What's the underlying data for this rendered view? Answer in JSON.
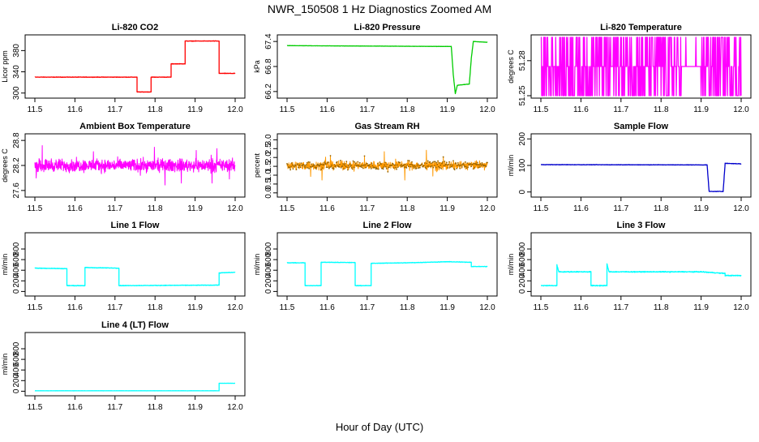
{
  "figure": {
    "title": "NWR_150508  1 Hz Diagnostics Zoomed AM",
    "xlabel": "Hour of Day (UTC)"
  },
  "chart_data": [
    {
      "type": "line",
      "title": "Li-820 CO2",
      "ylabel": "Licor ppm",
      "color": "#ff0000",
      "xlim": [
        11.5,
        12.0
      ],
      "ylim": [
        295,
        405
      ],
      "x_ticks": [
        "11.5",
        "11.6",
        "11.7",
        "11.8",
        "11.9",
        "12.0"
      ],
      "y_ticks": [
        "300",
        "340",
        "380"
      ],
      "y_tick_values": [
        300,
        340,
        380
      ],
      "noise": 0.6,
      "x": [
        11.5,
        11.755,
        11.755,
        11.79,
        11.79,
        11.84,
        11.84,
        11.875,
        11.875,
        11.96,
        11.96,
        12.0
      ],
      "y": [
        330,
        330,
        302,
        302,
        330,
        330,
        355,
        355,
        398,
        398,
        337,
        337
      ]
    },
    {
      "type": "line",
      "title": "Li-820 Pressure",
      "ylabel": "kPa",
      "color": "#00cc00",
      "xlim": [
        11.5,
        12.0
      ],
      "ylim": [
        66.1,
        67.5
      ],
      "x_ticks": [
        "11.5",
        "11.6",
        "11.7",
        "11.8",
        "11.9",
        "12.0"
      ],
      "y_ticks": [
        "66.2",
        "66.8",
        "67.4"
      ],
      "y_tick_values": [
        66.2,
        66.8,
        67.4
      ],
      "noise": 0.004,
      "x": [
        11.5,
        11.91,
        11.915,
        11.92,
        11.925,
        11.955,
        11.96,
        11.965,
        12.0
      ],
      "y": [
        67.3,
        67.28,
        66.6,
        66.15,
        66.35,
        66.38,
        67.0,
        67.4,
        67.38
      ]
    },
    {
      "type": "step-noise",
      "title": "Li-820 Temperature",
      "ylabel": "degrees C",
      "color": "#ff00ff",
      "xlim": [
        11.5,
        12.0
      ],
      "ylim": [
        51.25,
        51.3
      ],
      "x_ticks": [
        "11.5",
        "11.6",
        "11.7",
        "11.8",
        "11.9",
        "12.0"
      ],
      "y_ticks": [
        "51.25",
        "51.28"
      ],
      "y_tick_values": [
        51.25,
        51.28
      ],
      "levels": [
        51.25,
        51.275,
        51.3
      ],
      "gap": [
        11.85,
        11.9
      ]
    },
    {
      "type": "noise",
      "title": "Ambient Box Temperature",
      "ylabel": "degrees C",
      "color": "#ff00ff",
      "xlim": [
        11.5,
        12.0
      ],
      "ylim": [
        27.5,
        28.9
      ],
      "x_ticks": [
        "11.5",
        "11.6",
        "11.7",
        "11.8",
        "11.9",
        "12.0"
      ],
      "y_ticks": [
        "27.6",
        "28.2",
        "28.8"
      ],
      "y_tick_values": [
        27.6,
        28.2,
        28.8
      ],
      "center": 28.2,
      "spread": 0.22
    },
    {
      "type": "noise",
      "title": "Gas Stream RH",
      "ylabel": "percent",
      "color": "#ff9900",
      "xlim": [
        11.5,
        12.0
      ],
      "ylim": [
        -0.1,
        3.2
      ],
      "x_ticks": [
        "11.5",
        "11.6",
        "11.7",
        "11.8",
        "11.9",
        "12.0"
      ],
      "y_ticks": [
        "0.0",
        "0.5",
        "1.0",
        "1.5",
        "2.0",
        "2.5",
        "3.0"
      ],
      "y_tick_values": [
        0,
        0.5,
        1,
        1.5,
        2,
        2.5,
        3
      ],
      "center": 1.55,
      "spread": 0.35
    },
    {
      "type": "line",
      "title": "Sample Flow",
      "ylabel": "ml/min",
      "color": "#0000cc",
      "xlim": [
        11.5,
        12.0
      ],
      "ylim": [
        -10,
        210
      ],
      "x_ticks": [
        "11.5",
        "11.6",
        "11.7",
        "11.8",
        "11.9",
        "12.0"
      ],
      "y_ticks": [
        "0",
        "100",
        "200"
      ],
      "y_tick_values": [
        0,
        100,
        200
      ],
      "noise": 1.2,
      "x": [
        11.5,
        11.915,
        11.92,
        11.955,
        11.96,
        12.0
      ],
      "y": [
        103,
        102,
        2,
        2,
        108,
        106
      ]
    },
    {
      "type": "line",
      "title": "Line 1 Flow",
      "ylabel": "ml/min",
      "color": "#00ffff",
      "xlim": [
        11.5,
        12.0
      ],
      "ylim": [
        -40,
        1060
      ],
      "x_ticks": [
        "11.5",
        "11.6",
        "11.7",
        "11.8",
        "11.9",
        "12.0"
      ],
      "y_ticks": [
        "0",
        "200",
        "400",
        "600",
        "800"
      ],
      "y_tick_values": [
        0,
        200,
        400,
        600,
        800
      ],
      "noise": 8,
      "x": [
        11.5,
        11.58,
        11.58,
        11.625,
        11.625,
        11.71,
        11.71,
        11.96,
        11.96,
        12.0
      ],
      "y": [
        440,
        430,
        110,
        110,
        450,
        440,
        110,
        120,
        350,
        360
      ]
    },
    {
      "type": "line",
      "title": "Line 2 Flow",
      "ylabel": "ml/min",
      "color": "#00ffff",
      "xlim": [
        11.5,
        12.0
      ],
      "ylim": [
        -40,
        1060
      ],
      "x_ticks": [
        "11.5",
        "11.6",
        "11.7",
        "11.8",
        "11.9",
        "12.0"
      ],
      "y_ticks": [
        "0",
        "200",
        "400",
        "600",
        "800"
      ],
      "y_tick_values": [
        0,
        200,
        400,
        600,
        800
      ],
      "noise": 7,
      "x": [
        11.5,
        11.545,
        11.545,
        11.585,
        11.585,
        11.67,
        11.67,
        11.71,
        11.71,
        11.8,
        11.9,
        11.96,
        11.96,
        12.0
      ],
      "y": [
        540,
        540,
        110,
        110,
        550,
        545,
        110,
        110,
        530,
        540,
        560,
        550,
        470,
        470
      ]
    },
    {
      "type": "line",
      "title": "Line 3 Flow",
      "ylabel": "ml/min",
      "color": "#00ffff",
      "xlim": [
        11.5,
        12.0
      ],
      "ylim": [
        -40,
        1060
      ],
      "x_ticks": [
        "11.5",
        "11.6",
        "11.7",
        "11.8",
        "11.9",
        "12.0"
      ],
      "y_ticks": [
        "0",
        "200",
        "400",
        "600",
        "800"
      ],
      "y_tick_values": [
        0,
        200,
        400,
        600,
        800
      ],
      "noise": 12,
      "x": [
        11.5,
        11.54,
        11.54,
        11.545,
        11.625,
        11.625,
        11.665,
        11.665,
        11.67,
        11.8,
        11.9,
        11.96,
        11.96,
        12.0
      ],
      "y": [
        110,
        110,
        500,
        370,
        370,
        110,
        110,
        520,
        370,
        370,
        370,
        340,
        300,
        300
      ]
    },
    {
      "type": "line",
      "title": "Line 4 (LT) Flow",
      "ylabel": "ml/min",
      "color": "#00ffff",
      "xlim": [
        11.5,
        12.0
      ],
      "ylim": [
        -40,
        1060
      ],
      "x_ticks": [
        "11.5",
        "11.6",
        "11.7",
        "11.8",
        "11.9",
        "12.0"
      ],
      "y_ticks": [
        "0",
        "200",
        "400",
        "600",
        "800"
      ],
      "y_tick_values": [
        0,
        200,
        400,
        600,
        800
      ],
      "noise": 2,
      "x": [
        11.5,
        11.96,
        11.96,
        12.0
      ],
      "y": [
        8,
        8,
        150,
        150
      ]
    }
  ]
}
